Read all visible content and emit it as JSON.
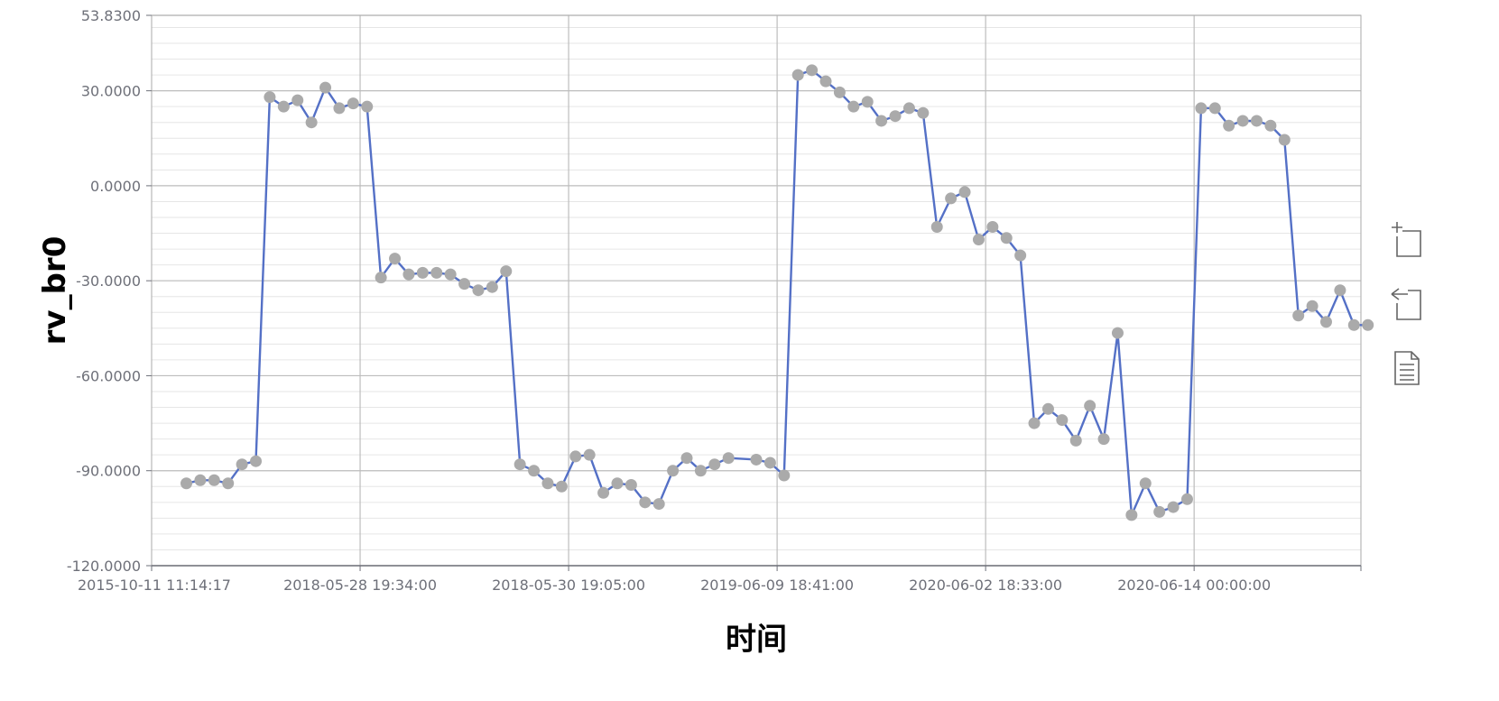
{
  "chart_data": {
    "type": "line",
    "xlabel": "时间",
    "ylabel": "rv_br0",
    "ylim": [
      -120,
      53.83
    ],
    "y_ticks": [
      "53.8300",
      "30.0000",
      "0.0000",
      "-30.0000",
      "-60.0000",
      "-90.0000",
      "-120.0000"
    ],
    "y_tick_values": [
      53.83,
      30,
      0,
      -30,
      -60,
      -90,
      -120
    ],
    "x_ticks": [
      "2015-10-11 11:14:17",
      "2018-05-28 19:34:00",
      "2018-05-30 19:05:00",
      "2019-06-09 18:41:00",
      "2020-06-02 18:33:00",
      "2020-06-14 00:00:00"
    ],
    "x_tick_indices": [
      0,
      15,
      30,
      45,
      60,
      75
    ],
    "x_range": [
      0,
      87
    ],
    "grid": true,
    "colors": {
      "line": "#5470c6",
      "point": "#aaaaaa",
      "grid": "#d9d9d9",
      "axis": "#6e7079"
    },
    "series": [
      {
        "x": [
          2.5,
          3.5,
          4.5,
          5.5,
          6.5,
          7.5,
          8.5,
          9.5,
          10.5,
          11.5,
          12.5,
          13.5,
          14.5,
          15.5,
          16.5,
          17.5,
          18.5,
          19.5,
          20.5,
          21.5,
          22.5,
          23.5,
          24.5,
          25.5,
          26.5,
          27.5,
          28.5,
          29.5,
          30.5,
          31.5,
          32.5,
          33.5,
          34.5,
          35.5,
          36.5,
          37.5,
          38.5,
          39.5,
          40.5,
          41.5,
          43.5,
          44.5,
          45.5,
          46.5,
          47.5,
          48.5,
          49.5,
          50.5,
          51.5,
          52.5,
          53.5,
          54.5,
          55.5,
          56.5,
          57.5,
          58.5,
          59.5,
          60.5,
          61.5,
          62.5,
          63.5,
          64.5,
          65.5,
          66.5,
          67.5,
          68.5,
          69.5,
          70.5,
          71.5,
          72.5,
          73.5,
          74.5,
          75.5,
          76.5,
          77.5,
          78.5,
          79.5,
          80.5,
          81.5,
          82.5,
          83.5,
          84.5,
          85.5,
          86.5,
          87.5
        ],
        "values": [
          -94.0,
          -93.0,
          -93.0,
          -94.0,
          -88.0,
          -87.0,
          28.0,
          25.0,
          27.0,
          20.0,
          31.0,
          24.5,
          26.0,
          25.0,
          -29.0,
          -23.0,
          -28.0,
          -27.5,
          -27.5,
          -28.0,
          -31.0,
          -33.0,
          -32.0,
          -27.0,
          -88.0,
          -90.0,
          -94.0,
          -95.0,
          -85.5,
          -85.0,
          -97.0,
          -94.0,
          -94.5,
          -100.0,
          -100.5,
          -90.0,
          -86.0,
          -90.0,
          -88.0,
          -86.0,
          -86.5,
          -87.5,
          -91.5,
          35.0,
          36.5,
          33.0,
          29.5,
          25.0,
          26.5,
          20.5,
          22.0,
          24.5,
          23.0,
          -13.0,
          -4.0,
          -2.0,
          -17.0,
          -13.0,
          -16.5,
          -22.0,
          -75.0,
          -70.5,
          -74.0,
          -80.5,
          -69.5,
          -80.0,
          -46.5,
          -104.0,
          -94.0,
          -103.0,
          -101.5,
          -99.0,
          24.5,
          24.5,
          19.0,
          20.5,
          20.5,
          19.0,
          14.5,
          -41.0,
          -38.0,
          -43.0,
          -33.0,
          -44.0,
          -44.0
        ]
      }
    ]
  },
  "toolbox": {
    "zoom_icon": "data-zoom-icon",
    "restore_icon": "zoom-restore-icon",
    "data_view_icon": "data-view-icon"
  }
}
